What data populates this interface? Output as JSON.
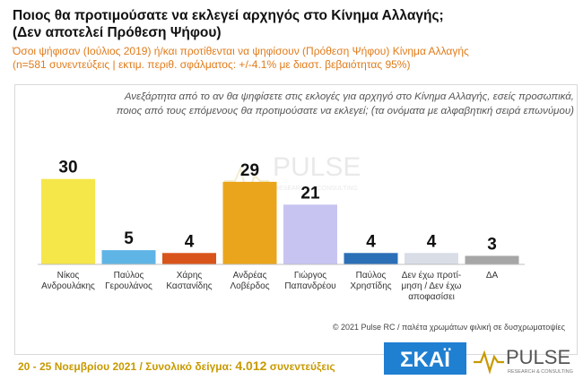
{
  "header": {
    "title_line1": "Ποιος θα προτιμούσατε να εκλεγεί αρχηγός στο Κίνημα Αλλαγής;",
    "title_line2": "(Δεν αποτελεί Πρόθεση Ψήφου)",
    "subtitle_line1": "Όσοι ψήφισαν (Ιούλιος 2019) ή/και προτίθενται να ψηφίσουν  (Πρόθεση Ψήφου) Κίνημα Αλλαγής",
    "subtitle_line2": "(n=581 συνεντεύξεις | εκτιμ. περιθ. σφάλματος: +/-4.1% με διαστ. βεβαιότητας 95%)",
    "question_line1": "Ανεξάρτητα από το αν θα ψηφίσετε στις εκλογές για αρχηγό στο Κίνημα Αλλαγής, εσείς προσωπικά,",
    "question_line2": "ποιος από τους επόμενους θα προτιμούσατε να εκλεγεί; (τα ονόματα με αλφαβητική σειρά επωνύμου)"
  },
  "chart_data": {
    "type": "bar",
    "categories": [
      [
        "Νίκος",
        "Ανδρουλάκης"
      ],
      [
        "Παύλος",
        "Γερουλάνος"
      ],
      [
        "Χάρης",
        "Καστανίδης"
      ],
      [
        "Ανδρέας",
        "Λοβέρδος"
      ],
      [
        "Γιώργος",
        "Παπανδρέου"
      ],
      [
        "Παύλος",
        "Χρηστίδης"
      ],
      [
        "Δεν έχω προτί-",
        "μηση / Δεν έχω",
        "αποφασίσει"
      ],
      [
        "ΔΑ"
      ]
    ],
    "values": [
      30,
      5,
      4,
      29,
      21,
      4,
      4,
      3
    ],
    "colors": [
      "#f5e64a",
      "#5fb4e6",
      "#d9541a",
      "#eba51c",
      "#c8c4f2",
      "#2b6fb6",
      "#d9dde6",
      "#a6a6a6"
    ],
    "ylim": [
      0,
      34
    ]
  },
  "watermark": {
    "text": "PULSE",
    "sub": "RESEARCH & CONSULTING"
  },
  "credit": "© 2021 Pulse RC  /  παλέτα χρωμάτων φιλική σε δυσχρωματοψίες",
  "footer": {
    "dates": "20 - 25  Νοεμβρίου 2021",
    "sep": "  /  ",
    "sample_label": "Συνολικό δείγμα:  ",
    "sample_value": "4.012",
    "sample_unit": " συνεντεύξεις"
  },
  "logos": {
    "skai": "ΣΚΑΪ",
    "pulse": "PULSE",
    "pulse_sub": "RESEARCH & CONSULTING"
  }
}
